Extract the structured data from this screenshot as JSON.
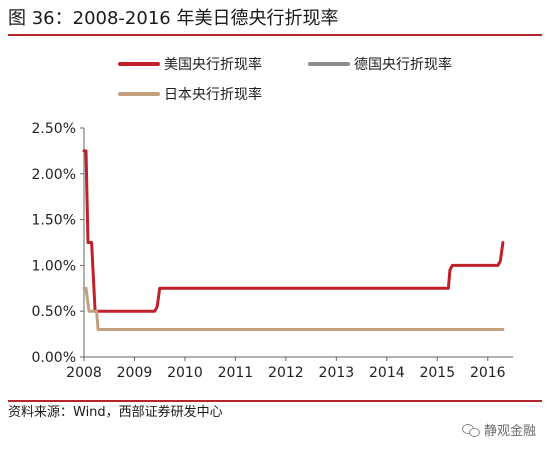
{
  "header": {
    "title": "图 36：2008-2016 年美日德央行折现率"
  },
  "footer": {
    "source": "资料来源：Wind，西部证券研发中心",
    "watermark": "静观金融"
  },
  "chart_data": {
    "type": "line",
    "title": "图 36：2008-2016 年美日德央行折现率",
    "xlabel": "",
    "ylabel": "",
    "xlim": [
      2008,
      2016.5
    ],
    "ylim": [
      0,
      0.025
    ],
    "x_ticks": [
      "2008",
      "2009",
      "2010",
      "2011",
      "2012",
      "2013",
      "2014",
      "2015",
      "2016"
    ],
    "y_ticks": [
      "0.00%",
      "0.50%",
      "1.00%",
      "1.50%",
      "2.00%",
      "2.50%"
    ],
    "grid": false,
    "legend_position": "top",
    "series": [
      {
        "name": "美国央行折现率",
        "color": "#c0202a",
        "x": [
          2008.0,
          2008.04,
          2008.08,
          2008.15,
          2008.22,
          2008.26,
          2008.3,
          2008.5,
          2009.0,
          2009.4,
          2009.45,
          2009.5,
          2010.0,
          2012.0,
          2014.0,
          2015.0,
          2015.22,
          2015.25,
          2015.3,
          2016.0,
          2016.2,
          2016.25,
          2016.3
        ],
        "y": [
          0.0225,
          0.0225,
          0.0125,
          0.0125,
          0.005,
          0.005,
          0.005,
          0.005,
          0.005,
          0.005,
          0.0055,
          0.0075,
          0.0075,
          0.0075,
          0.0075,
          0.0075,
          0.0075,
          0.0095,
          0.01,
          0.01,
          0.01,
          0.0105,
          0.0125
        ]
      },
      {
        "name": "德国央行折现率",
        "color": "#8c8c8c",
        "x": [],
        "y": []
      },
      {
        "name": "日本央行折现率",
        "color": "#c4a17e",
        "x": [
          2008.0,
          2008.04,
          2008.1,
          2008.15,
          2008.18,
          2008.25,
          2008.28,
          2008.35,
          2008.5,
          2009.0,
          2010.0,
          2012.0,
          2014.0,
          2016.0,
          2016.3
        ],
        "y": [
          0.0075,
          0.0075,
          0.005,
          0.005,
          0.005,
          0.005,
          0.003,
          0.003,
          0.003,
          0.003,
          0.003,
          0.003,
          0.003,
          0.003,
          0.003
        ]
      }
    ]
  }
}
